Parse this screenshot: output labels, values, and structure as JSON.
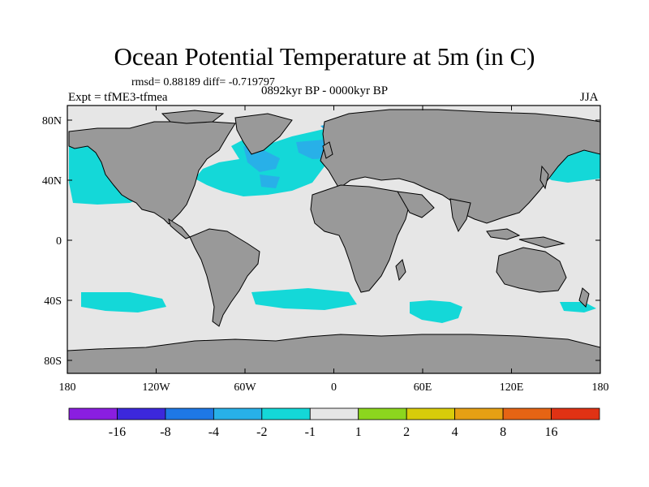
{
  "title": "Ocean Potential Temperature at 5m (in C)",
  "stats_text": "rmsd= 0.88189 diff= -0.719797",
  "experiment_text": "Expt = tfME3-tfmea",
  "period_text": "0892kyr BP - 0000kyr BP",
  "season_text": "JJA",
  "map": {
    "lat_ticks": [
      "80N",
      "40N",
      "0",
      "40S",
      "80S"
    ],
    "lon_ticks": [
      "180",
      "120W",
      "60W",
      "0",
      "60E",
      "120E",
      "180"
    ],
    "colors": {
      "land": "#999999",
      "neutral_ocean": "#e6e6e6",
      "light_cool": "#14d8d8",
      "medium_cool": "#28b0e8",
      "coast": "#000000"
    }
  },
  "legend": {
    "colors": [
      "#8a1ee0",
      "#3c28dc",
      "#1e78e6",
      "#28b0e8",
      "#14d8d8",
      "#e6e6e6",
      "#8cd61e",
      "#d8cc0a",
      "#e6a014",
      "#e66414",
      "#e03214"
    ],
    "labels": [
      "-16",
      "-8",
      "-4",
      "-2",
      "-1",
      "1",
      "2",
      "4",
      "8",
      "16"
    ]
  }
}
